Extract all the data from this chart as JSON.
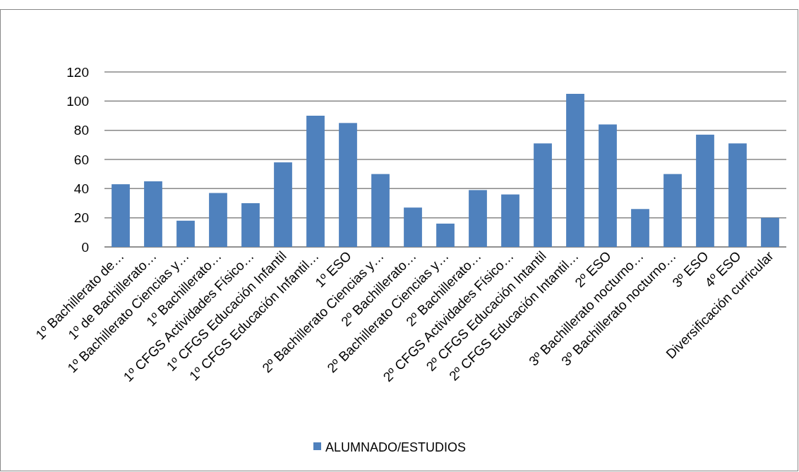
{
  "chart_data": {
    "type": "bar",
    "categories": [
      "1º Bachillerato de…",
      "1º de Bachillerato…",
      "1º Bachillerato Ciencias y…",
      "1º Bachillerato…",
      "1º CFGS Actividades Físico…",
      "1º CFGS Educación Infantil",
      "1º CFGS Educación Infantil…",
      "1º ESO",
      "2º Bachillerato Ciencias y…",
      "2º Bachillerato…",
      "2º Bachillerato Ciencias y…",
      "2º Bachillerato…",
      "2º CFGS Actividades Físico…",
      "2º CFGS Educación Intantil",
      "2º CFGS Educación Intantil…",
      "2º ESO",
      "3º Bachillerato nocturno…",
      "3º Bachillerato nocturno…",
      "3º ESO",
      "4º ESO",
      "Diversificación curricular"
    ],
    "series": [
      {
        "name": "ALUMNADO/ESTUDIOS",
        "color": "#4f81bd",
        "values": [
          43,
          45,
          18,
          37,
          30,
          58,
          90,
          85,
          50,
          27,
          16,
          39,
          36,
          71,
          105,
          84,
          26,
          50,
          77,
          71,
          20
        ]
      }
    ],
    "ylim": [
      0,
      120
    ],
    "yticks": [
      0,
      20,
      40,
      60,
      80,
      100,
      120
    ],
    "grid": "y",
    "legend": "bottom"
  }
}
